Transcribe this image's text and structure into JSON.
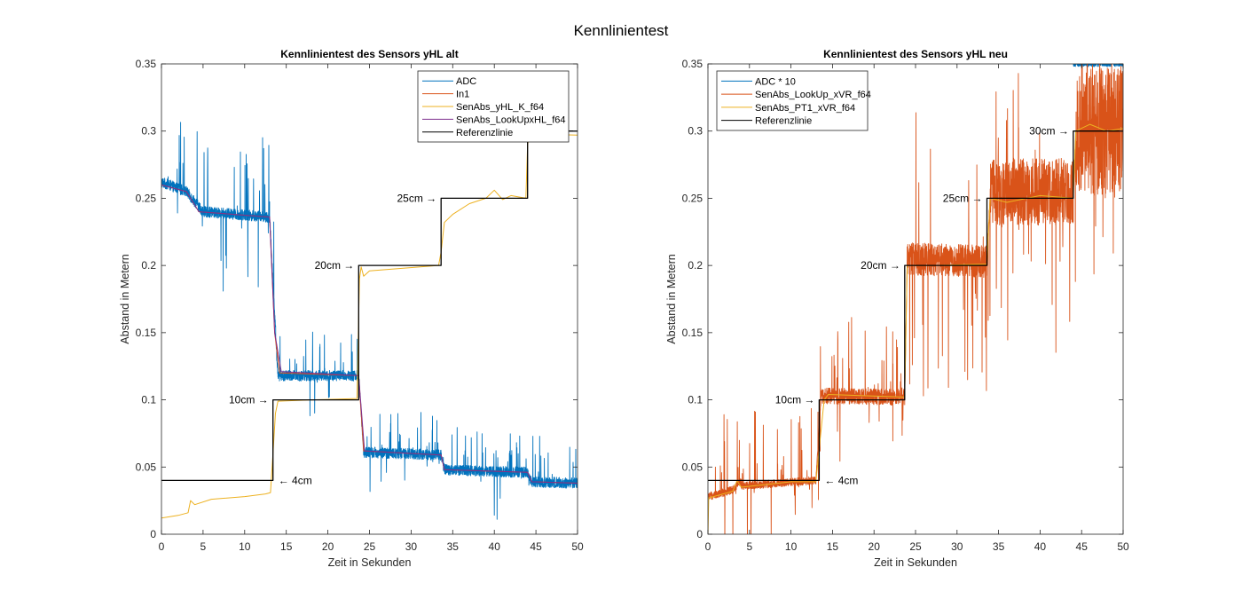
{
  "figure_title": "Kennlinientest",
  "chart_data": [
    {
      "type": "line",
      "title": "Kennlinientest des Sensors yHL alt",
      "xlabel": "Zeit in Sekunden",
      "ylabel": "Abstand in Metern",
      "xlim": [
        0,
        50
      ],
      "ylim": [
        0,
        0.35
      ],
      "xticks": [
        0,
        5,
        10,
        15,
        20,
        25,
        30,
        35,
        40,
        45,
        50
      ],
      "yticks": [
        0,
        0.05,
        0.1,
        0.15,
        0.2,
        0.25,
        0.3,
        0.35
      ],
      "ytick_labels": [
        "0",
        "0.05",
        "0.1",
        "0.15",
        "0.2",
        "0.25",
        "0.3",
        "0.35"
      ],
      "grid": false,
      "legend_position": "top-right",
      "series": [
        {
          "name": "ADC",
          "color": "#0072BD",
          "style": "noisy",
          "segments": [
            {
              "x": [
                0,
                3
              ],
              "y": [
                0.262,
                0.255
              ]
            },
            {
              "x": [
                3,
                5
              ],
              "y": [
                0.255,
                0.24
              ]
            },
            {
              "x": [
                5,
                13
              ],
              "y": [
                0.24,
                0.236
              ]
            },
            {
              "x": [
                13,
                14
              ],
              "y": [
                0.236,
                0.118
              ]
            },
            {
              "x": [
                14,
                23.7
              ],
              "y": [
                0.118,
                0.118
              ]
            },
            {
              "x": [
                23.7,
                24.3
              ],
              "y": [
                0.118,
                0.061
              ]
            },
            {
              "x": [
                24.3,
                33.6
              ],
              "y": [
                0.061,
                0.059
              ]
            },
            {
              "x": [
                33.6,
                34
              ],
              "y": [
                0.059,
                0.048
              ]
            },
            {
              "x": [
                34,
                44
              ],
              "y": [
                0.048,
                0.046
              ]
            },
            {
              "x": [
                44,
                44.5
              ],
              "y": [
                0.046,
                0.039
              ]
            },
            {
              "x": [
                44.5,
                50
              ],
              "y": [
                0.039,
                0.038
              ]
            }
          ],
          "noise": 0.004,
          "spike_rate": 0.05,
          "spike_max": 0.035
        },
        {
          "name": "In1",
          "color": "#D95319",
          "style": "smooth",
          "points": [
            [
              0,
              0.26
            ],
            [
              3,
              0.255
            ],
            [
              4.5,
              0.24
            ],
            [
              13,
              0.236
            ],
            [
              13.6,
              0.15
            ],
            [
              14.2,
              0.12
            ],
            [
              23.7,
              0.118
            ],
            [
              24.3,
              0.062
            ],
            [
              33.6,
              0.059
            ],
            [
              34,
              0.048
            ],
            [
              44,
              0.046
            ],
            [
              44.5,
              0.039
            ],
            [
              50,
              0.038
            ]
          ]
        },
        {
          "name": "SenAbs_yHL_K_f64",
          "color": "#EDB120",
          "style": "smooth",
          "points": [
            [
              0,
              0.012
            ],
            [
              2,
              0.014
            ],
            [
              3.2,
              0.016
            ],
            [
              3.5,
              0.025
            ],
            [
              4,
              0.022
            ],
            [
              6,
              0.026
            ],
            [
              10,
              0.028
            ],
            [
              12.5,
              0.03
            ],
            [
              13.1,
              0.031
            ],
            [
              13.4,
              0.06
            ],
            [
              13.7,
              0.09
            ],
            [
              14,
              0.099
            ],
            [
              18,
              0.1
            ],
            [
              23.5,
              0.101
            ],
            [
              23.8,
              0.19
            ],
            [
              24,
              0.199
            ],
            [
              24.3,
              0.192
            ],
            [
              25,
              0.196
            ],
            [
              33.3,
              0.2
            ],
            [
              33.6,
              0.21
            ],
            [
              34,
              0.232
            ],
            [
              35,
              0.238
            ],
            [
              37,
              0.246
            ],
            [
              39,
              0.25
            ],
            [
              40,
              0.256
            ],
            [
              41,
              0.249
            ],
            [
              42,
              0.252
            ],
            [
              43.8,
              0.25
            ],
            [
              44,
              0.29
            ],
            [
              44.3,
              0.298
            ],
            [
              50,
              0.297
            ]
          ]
        },
        {
          "name": "SenAbs_LookUpxHL_f64",
          "color": "#7E2F8E",
          "style": "smooth",
          "points": [
            [
              0,
              0.26
            ],
            [
              3,
              0.255
            ],
            [
              4.5,
              0.24
            ],
            [
              13,
              0.236
            ],
            [
              13.6,
              0.15
            ],
            [
              14.4,
              0.121
            ],
            [
              23.7,
              0.118
            ],
            [
              24.4,
              0.062
            ],
            [
              33.6,
              0.059
            ],
            [
              34,
              0.048
            ],
            [
              44,
              0.046
            ],
            [
              44.5,
              0.039
            ],
            [
              50,
              0.038
            ]
          ]
        },
        {
          "name": "Referenzlinie",
          "color": "#000000",
          "style": "step",
          "points": [
            [
              0,
              0.04
            ],
            [
              13.4,
              0.04
            ],
            [
              13.4,
              0.1
            ],
            [
              23.7,
              0.1
            ],
            [
              23.7,
              0.2
            ],
            [
              33.6,
              0.2
            ],
            [
              33.6,
              0.25
            ],
            [
              44,
              0.25
            ],
            [
              44,
              0.3
            ],
            [
              50,
              0.3
            ]
          ]
        }
      ],
      "annotations": [
        {
          "text": "10cm →",
          "x": 13.4,
          "y": 0.1,
          "side": "left"
        },
        {
          "text": "← 4cm",
          "x": 13.4,
          "y": 0.04,
          "side": "right"
        },
        {
          "text": "20cm →",
          "x": 23.7,
          "y": 0.2,
          "side": "left"
        },
        {
          "text": "25cm →",
          "x": 33.6,
          "y": 0.25,
          "side": "left"
        }
      ]
    },
    {
      "type": "line",
      "title": "Kennlinientest des Sensors yHL neu",
      "xlabel": "Zeit in Sekunden",
      "ylabel": "Abstand in Metern",
      "xlim": [
        0,
        50
      ],
      "ylim": [
        0,
        0.35
      ],
      "xticks": [
        0,
        5,
        10,
        15,
        20,
        25,
        30,
        35,
        40,
        45,
        50
      ],
      "yticks": [
        0,
        0.05,
        0.1,
        0.15,
        0.2,
        0.25,
        0.3,
        0.35
      ],
      "ytick_labels": [
        "0",
        "0.05",
        "0.1",
        "0.15",
        "0.2",
        "0.25",
        "0.3",
        "0.35"
      ],
      "grid": false,
      "legend_position": "top-left",
      "series": [
        {
          "name": "ADC * 10",
          "color": "#0072BD",
          "style": "noisy",
          "segments": [
            {
              "x": [
                44,
                50
              ],
              "y": [
                0.35,
                0.35
              ]
            }
          ],
          "noise": 0.002,
          "spike_rate": 0.0,
          "spike_max": 0.0
        },
        {
          "name": "SenAbs_LookUp_xVR_f64",
          "color": "#D95319",
          "style": "noisy",
          "segments": [
            {
              "x": [
                0,
                3
              ],
              "y": [
                0.028,
                0.033
              ]
            },
            {
              "x": [
                3,
                4
              ],
              "y": [
                0.033,
                0.04
              ]
            },
            {
              "x": [
                4,
                13
              ],
              "y": [
                0.036,
                0.04
              ]
            },
            {
              "x": [
                13,
                13.6
              ],
              "y": [
                0.04,
                0.1
              ]
            },
            {
              "x": [
                13.6,
                23.7
              ],
              "y": [
                0.103,
                0.102
              ]
            },
            {
              "x": [
                23.7,
                24
              ],
              "y": [
                0.102,
                0.205
              ]
            },
            {
              "x": [
                24,
                33.6
              ],
              "y": [
                0.205,
                0.203
              ]
            },
            {
              "x": [
                33.6,
                34
              ],
              "y": [
                0.203,
                0.255
              ]
            },
            {
              "x": [
                34,
                44
              ],
              "y": [
                0.255,
                0.255
              ]
            },
            {
              "x": [
                44,
                44.3
              ],
              "y": [
                0.255,
                0.3
              ]
            },
            {
              "x": [
                44.3,
                50
              ],
              "y": [
                0.3,
                0.3
              ]
            }
          ],
          "noise_by_segment": [
            0.003,
            0.003,
            0.003,
            0.002,
            0.006,
            0.002,
            0.012,
            0.004,
            0.025,
            0.004,
            0.05
          ],
          "spike_rate": 0.06,
          "spike_max": 0.06
        },
        {
          "name": "SenAbs_PT1_xVR_f64",
          "color": "#EDB120",
          "style": "smooth",
          "points": [
            [
              0,
              0.0
            ],
            [
              0.1,
              0.027
            ],
            [
              3,
              0.032
            ],
            [
              3.5,
              0.04
            ],
            [
              4,
              0.035
            ],
            [
              7,
              0.037
            ],
            [
              10,
              0.039
            ],
            [
              13,
              0.039
            ],
            [
              13.5,
              0.07
            ],
            [
              14,
              0.1
            ],
            [
              14.5,
              0.104
            ],
            [
              23.7,
              0.102
            ],
            [
              24,
              0.2
            ],
            [
              27,
              0.2
            ],
            [
              33.6,
              0.201
            ],
            [
              34,
              0.25
            ],
            [
              36,
              0.247
            ],
            [
              40,
              0.252
            ],
            [
              44,
              0.25
            ],
            [
              44.3,
              0.3
            ],
            [
              46,
              0.305
            ],
            [
              48,
              0.3
            ],
            [
              50,
              0.302
            ]
          ]
        },
        {
          "name": "Referenzlinie",
          "color": "#000000",
          "style": "step",
          "points": [
            [
              0,
              0.04
            ],
            [
              13.4,
              0.04
            ],
            [
              13.4,
              0.1
            ],
            [
              23.7,
              0.1
            ],
            [
              23.7,
              0.2
            ],
            [
              33.6,
              0.2
            ],
            [
              33.6,
              0.25
            ],
            [
              44,
              0.25
            ],
            [
              44,
              0.3
            ],
            [
              50,
              0.3
            ]
          ]
        }
      ],
      "annotations": [
        {
          "text": "10cm →",
          "x": 13.4,
          "y": 0.1,
          "side": "left"
        },
        {
          "text": "← 4cm",
          "x": 13.4,
          "y": 0.04,
          "side": "right"
        },
        {
          "text": "20cm →",
          "x": 23.7,
          "y": 0.2,
          "side": "left"
        },
        {
          "text": "25cm →",
          "x": 33.6,
          "y": 0.25,
          "side": "left"
        },
        {
          "text": "30cm →",
          "x": 44,
          "y": 0.3,
          "side": "left"
        }
      ]
    }
  ]
}
